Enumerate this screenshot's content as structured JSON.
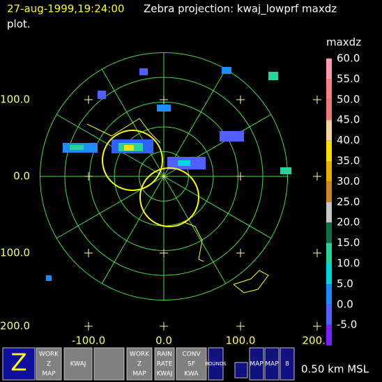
{
  "header": {
    "timestamp": "27-aug-1999,19:24:00",
    "title": "Zebra projection: kwaj_lowprf maxdz",
    "title_cont": "plot."
  },
  "colorbar": {
    "field": "maxdz",
    "labels": [
      "60.0",
      "55.0",
      "50.0",
      "45.0",
      "40.0",
      "35.0",
      "30.0",
      "25.0",
      "20.0",
      "15.0",
      "10.0",
      "5.0",
      "0.0",
      "-5.0"
    ],
    "colors": [
      "#ff99b4",
      "#ff8080",
      "#f07878",
      "#f5d2a0",
      "#f5e000",
      "#e8b000",
      "#c88a20",
      "#c8c8c8",
      "#106e48",
      "#28d29a",
      "#00d8e0",
      "#1e8cff",
      "#5060ff",
      "#7a20ff"
    ]
  },
  "axes": {
    "y_labels": [
      "100.0",
      "0.0",
      "100.0",
      "200.0"
    ],
    "x_labels": [
      "-100.0",
      "0.0",
      "100.0",
      "200.0"
    ]
  },
  "toolbar": {
    "buttons": [
      [
        "Z"
      ],
      [
        "WORK",
        "Z",
        "MAP"
      ],
      [
        "KWAJ"
      ],
      [
        ""
      ],
      [
        "WORK",
        "Z",
        "MAP"
      ],
      [
        "RAIN",
        "RATE",
        "KWAJ"
      ],
      [
        "CONV",
        "SF",
        "KWA"
      ],
      [
        "BOUNDS"
      ],
      [
        "MAP"
      ],
      [
        "MAP"
      ],
      [
        "8"
      ]
    ],
    "altitude": "0.50 km MSL"
  }
}
